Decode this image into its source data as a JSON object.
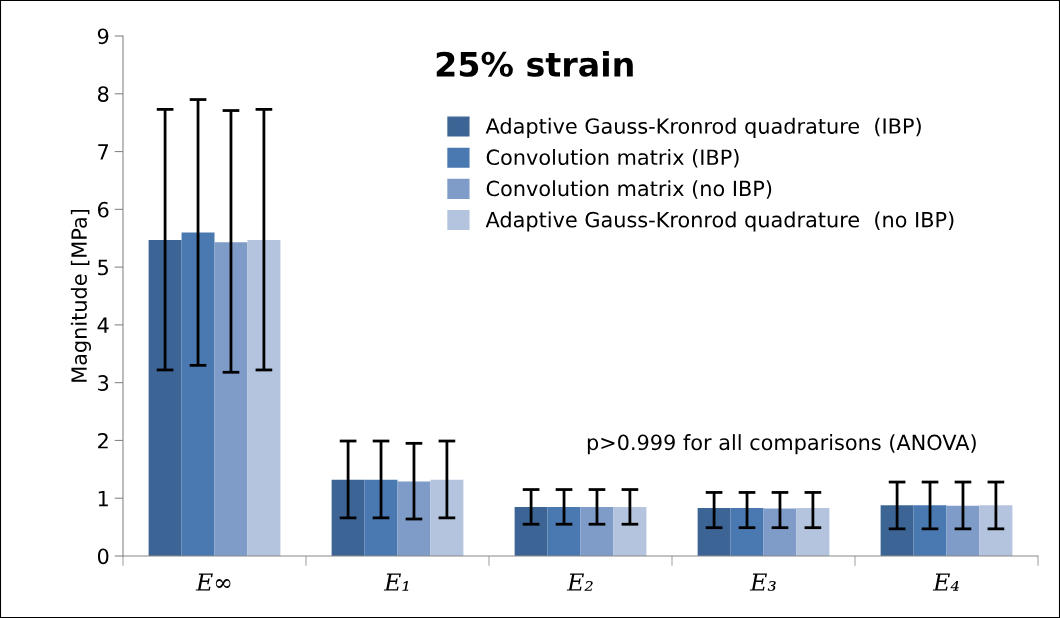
{
  "chart_data": {
    "type": "bar",
    "title": "25% strain",
    "ylabel": "Magnitude [MPa]",
    "categories": [
      "E∞",
      "E₁",
      "E₂",
      "E₃",
      "E₄"
    ],
    "series": [
      {
        "name": "Adaptive Gauss-Kronrod quadrature  (IBP)",
        "color": "#3c6494",
        "values": [
          5.47,
          1.32,
          0.85,
          0.83,
          0.88
        ],
        "errors": [
          [
            3.22,
            7.73
          ],
          [
            0.66,
            1.99
          ],
          [
            0.55,
            1.15
          ],
          [
            0.49,
            1.1
          ],
          [
            0.47,
            1.28
          ]
        ]
      },
      {
        "name": "Convolution matrix (IBP)",
        "color": "#4a78b0",
        "values": [
          5.6,
          1.32,
          0.85,
          0.83,
          0.88
        ],
        "errors": [
          [
            3.3,
            7.9
          ],
          [
            0.66,
            1.99
          ],
          [
            0.55,
            1.15
          ],
          [
            0.49,
            1.1
          ],
          [
            0.47,
            1.28
          ]
        ]
      },
      {
        "name": "Convolution matrix (no IBP)",
        "color": "#7f9cc8",
        "values": [
          5.43,
          1.29,
          0.85,
          0.82,
          0.87
        ],
        "errors": [
          [
            3.18,
            7.71
          ],
          [
            0.64,
            1.95
          ],
          [
            0.55,
            1.15
          ],
          [
            0.49,
            1.1
          ],
          [
            0.47,
            1.28
          ]
        ]
      },
      {
        "name": "Adaptive Gauss-Kronrod quadrature  (no IBP)",
        "color": "#b4c3de",
        "values": [
          5.47,
          1.32,
          0.85,
          0.83,
          0.88
        ],
        "errors": [
          [
            3.22,
            7.73
          ],
          [
            0.66,
            1.99
          ],
          [
            0.55,
            1.15
          ],
          [
            0.49,
            1.1
          ],
          [
            0.47,
            1.28
          ]
        ]
      }
    ],
    "ylim": [
      0,
      9
    ],
    "yticks": [
      0,
      1,
      2,
      3,
      4,
      5,
      6,
      7,
      8,
      9
    ],
    "annotations": [
      "p>0.999 for all comparisons (ANOVA)"
    ],
    "legend": "top right",
    "grid": false
  }
}
